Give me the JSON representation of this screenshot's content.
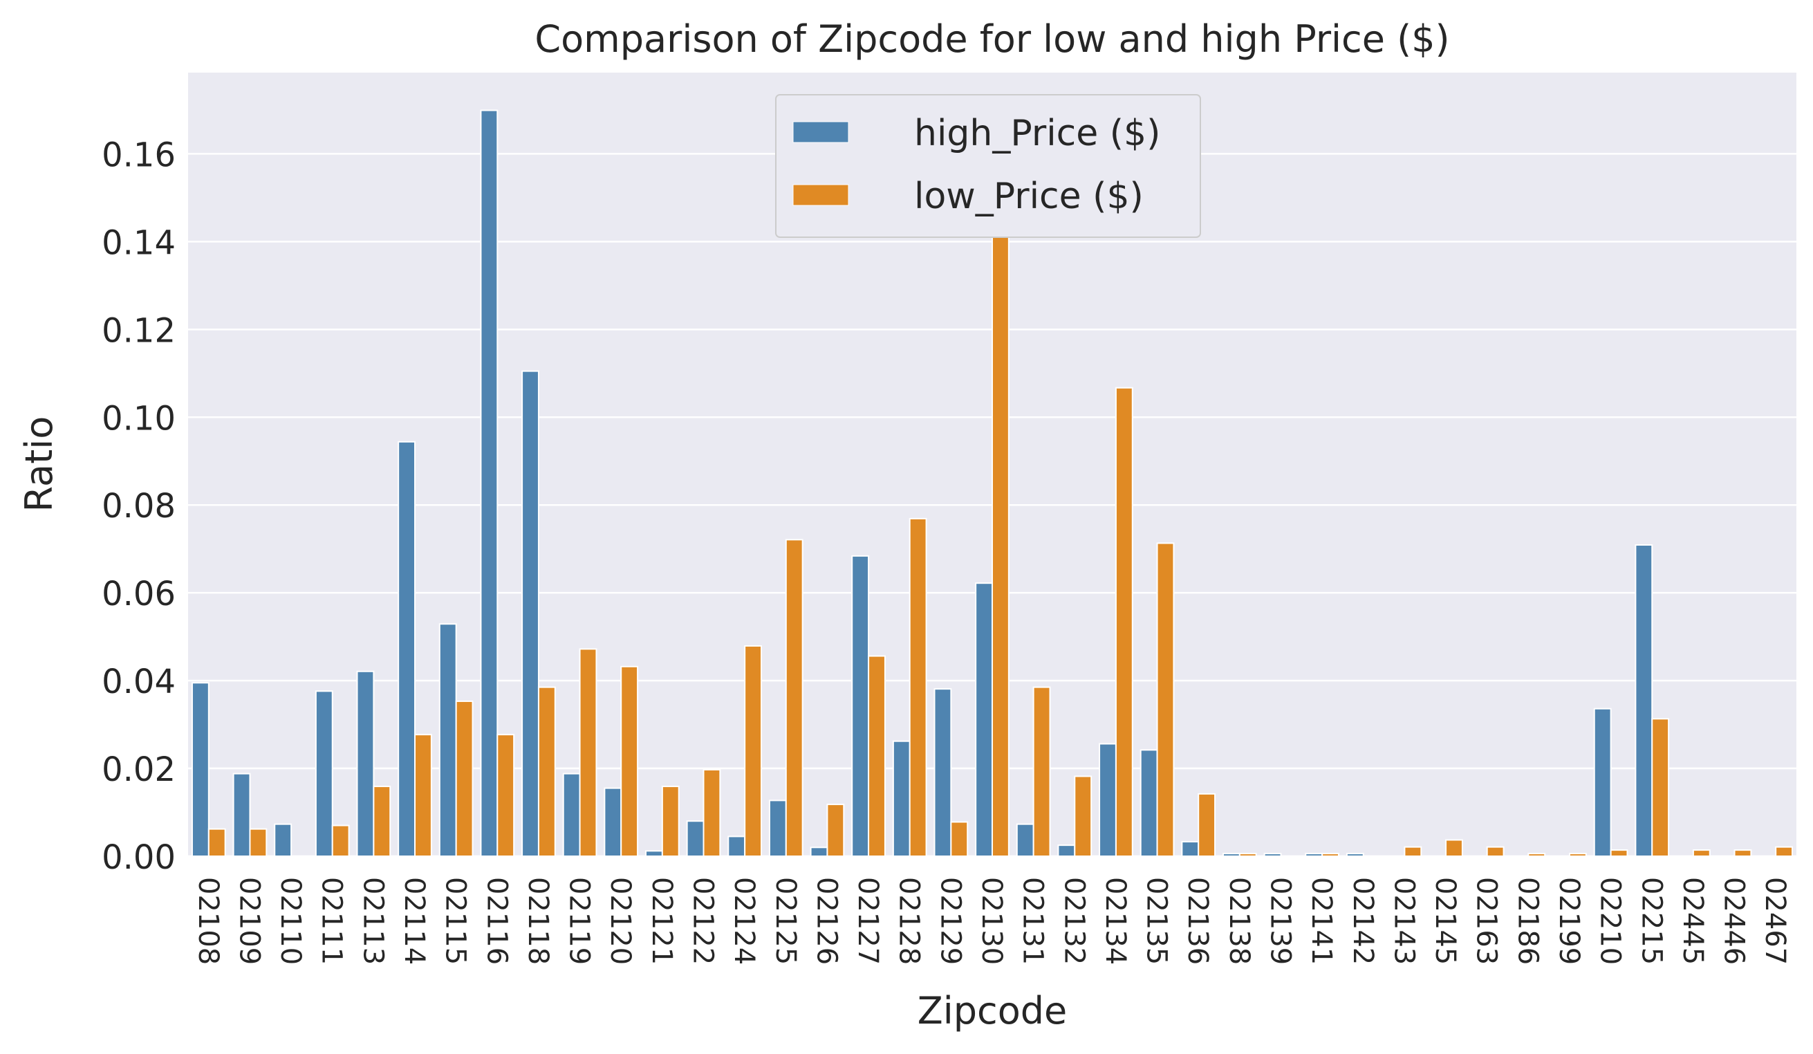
{
  "chart_data": {
    "type": "bar",
    "title": "Comparison of Zipcode for low and high Price ($)",
    "xlabel": "Zipcode",
    "ylabel": "Ratio",
    "ylim": [
      0,
      0.1785
    ],
    "yticks": [
      "0.00",
      "0.02",
      "0.04",
      "0.06",
      "0.08",
      "0.10",
      "0.12",
      "0.14",
      "0.16"
    ],
    "ytick_values": [
      0,
      0.02,
      0.04,
      0.06,
      0.08,
      0.1,
      0.12,
      0.14,
      0.16
    ],
    "grid": true,
    "legend_position": "top-center",
    "categories": [
      "02108",
      "02109",
      "02110",
      "02111",
      "02113",
      "02114",
      "02115",
      "02116",
      "02118",
      "02119",
      "02120",
      "02121",
      "02122",
      "02124",
      "02125",
      "02126",
      "02127",
      "02128",
      "02129",
      "02130",
      "02131",
      "02132",
      "02134",
      "02135",
      "02136",
      "02138",
      "02139",
      "02141",
      "02142",
      "02143",
      "02145",
      "02163",
      "02186",
      "02199",
      "02210",
      "02215",
      "02445",
      "02446",
      "02467"
    ],
    "series": [
      {
        "name": "high_Price ($)",
        "color": "#4f84b0",
        "values": [
          0.0395,
          0.0188,
          0.0073,
          0.0376,
          0.0421,
          0.0944,
          0.0529,
          0.1699,
          0.1105,
          0.0188,
          0.0155,
          0.0012,
          0.008,
          0.0045,
          0.0127,
          0.002,
          0.0684,
          0.0262,
          0.0381,
          0.0622,
          0.0073,
          0.0025,
          0.0256,
          0.0242,
          0.0033,
          0.0006,
          0.0006,
          0.0006,
          0.0006,
          0.0,
          0.0,
          0.0,
          0.0,
          0.0,
          0.0336,
          0.0709,
          0.0,
          0.0,
          0.0
        ]
      },
      {
        "name": "low_Price ($)",
        "color": "#e08a24",
        "values": [
          0.0062,
          0.0062,
          0.0,
          0.007,
          0.0159,
          0.0277,
          0.0353,
          0.0277,
          0.0385,
          0.0472,
          0.0432,
          0.0159,
          0.0197,
          0.0479,
          0.0721,
          0.0118,
          0.0456,
          0.0769,
          0.0078,
          0.1505,
          0.0385,
          0.0182,
          0.1067,
          0.0713,
          0.0142,
          0.0006,
          0.0,
          0.0006,
          0.0,
          0.0021,
          0.0037,
          0.0021,
          0.0006,
          0.0006,
          0.0014,
          0.0313,
          0.0014,
          0.0014,
          0.0021
        ]
      }
    ]
  }
}
